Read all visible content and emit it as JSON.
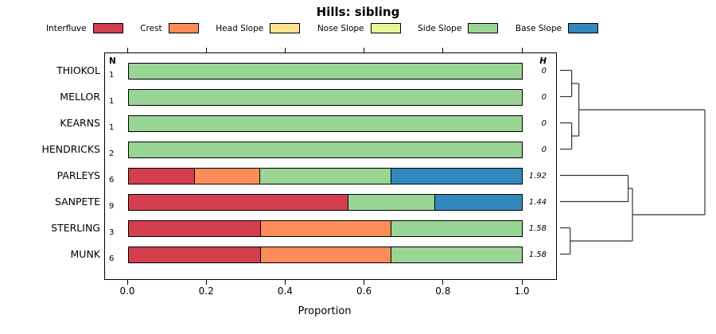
{
  "title": "Hills: sibling",
  "legend": {
    "items": [
      {
        "key": "interfluve",
        "label": "Interfluve",
        "color": "#d53e4f"
      },
      {
        "key": "crest",
        "label": "Crest",
        "color": "#fc8d59"
      },
      {
        "key": "head_slope",
        "label": "Head Slope",
        "color": "#fee08b"
      },
      {
        "key": "nose_slope",
        "label": "Nose Slope",
        "color": "#e6f598"
      },
      {
        "key": "side_slope",
        "label": "Side Slope",
        "color": "#99d594"
      },
      {
        "key": "base_slope",
        "label": "Base Slope",
        "color": "#3288bd"
      }
    ]
  },
  "chart_data": {
    "type": "bar",
    "subtype": "horizontal_stacked_with_dendrogram",
    "title": "Hills: sibling",
    "xlabel": "Proportion",
    "xlim": [
      0,
      1
    ],
    "xticks": [
      "0.0",
      "0.2",
      "0.4",
      "0.6",
      "0.8",
      "1.0"
    ],
    "tick_values": [
      0,
      0.2,
      0.4,
      0.6,
      0.8,
      1
    ],
    "columns": {
      "n_header": "N",
      "h_header": "H"
    },
    "rows": [
      {
        "name": "THIOKOL",
        "n": "1",
        "h": "0",
        "segments": [
          {
            "key": "side_slope",
            "value": 1
          }
        ]
      },
      {
        "name": "MELLOR",
        "n": "1",
        "h": "0",
        "segments": [
          {
            "key": "side_slope",
            "value": 1
          }
        ]
      },
      {
        "name": "KEARNS",
        "n": "1",
        "h": "0",
        "segments": [
          {
            "key": "side_slope",
            "value": 1
          }
        ]
      },
      {
        "name": "HENDRICKS",
        "n": "2",
        "h": "0",
        "segments": [
          {
            "key": "side_slope",
            "value": 1
          }
        ]
      },
      {
        "name": "PARLEYS",
        "n": "6",
        "h": "1.92",
        "segments": [
          {
            "key": "interfluve",
            "value": 0.167
          },
          {
            "key": "crest",
            "value": 0.166
          },
          {
            "key": "side_slope",
            "value": 0.334
          },
          {
            "key": "base_slope",
            "value": 0.333
          }
        ]
      },
      {
        "name": "SANPETE",
        "n": "9",
        "h": "1.44",
        "segments": [
          {
            "key": "interfluve",
            "value": 0.556
          },
          {
            "key": "side_slope",
            "value": 0.222
          },
          {
            "key": "base_slope",
            "value": 0.222
          }
        ]
      },
      {
        "name": "STERLING",
        "n": "3",
        "h": "1.58",
        "segments": [
          {
            "key": "interfluve",
            "value": 0.333
          },
          {
            "key": "crest",
            "value": 0.334
          },
          {
            "key": "side_slope",
            "value": 0.333
          }
        ]
      },
      {
        "name": "MUNK",
        "n": "6",
        "h": "1.58",
        "segments": [
          {
            "key": "interfluve",
            "value": 0.333
          },
          {
            "key": "crest",
            "value": 0.334
          },
          {
            "key": "side_slope",
            "value": 0.333
          }
        ]
      }
    ],
    "dendrogram": {
      "span": 182,
      "tree": {
        "h": 1,
        "c": [
          {
            "h": 0.13,
            "c": [
              {
                "h": 0.08,
                "c": [
                  {
                    "leaf": 0
                  },
                  {
                    "leaf": 1
                  }
                ]
              },
              {
                "h": 0.08,
                "c": [
                  {
                    "leaf": 2
                  },
                  {
                    "leaf": 3
                  }
                ]
              }
            ]
          },
          {
            "h": 0.5,
            "c": [
              {
                "h": 0.47,
                "c": [
                  {
                    "leaf": 4
                  },
                  {
                    "leaf": 5
                  }
                ]
              },
              {
                "h": 0.07,
                "c": [
                  {
                    "leaf": 6
                  },
                  {
                    "leaf": 7
                  }
                ]
              }
            ]
          }
        ]
      }
    }
  }
}
